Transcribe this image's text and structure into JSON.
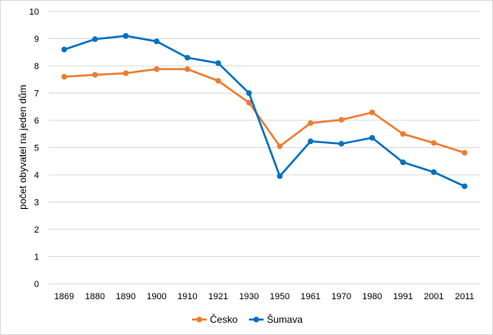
{
  "chart_data": {
    "type": "line",
    "title": "",
    "xlabel": "",
    "ylabel": "počet obyvatel na jeden dům",
    "categories": [
      "1869",
      "1880",
      "1890",
      "1900",
      "1910",
      "1921",
      "1930",
      "1950",
      "1961",
      "1970",
      "1980",
      "1991",
      "2001",
      "2011"
    ],
    "ylim": [
      0,
      10
    ],
    "yticks": [
      0,
      1,
      2,
      3,
      4,
      5,
      6,
      7,
      8,
      9,
      10
    ],
    "grid": true,
    "legend_position": "bottom",
    "series": [
      {
        "name": "Česko",
        "color": "#ED7D31",
        "values": [
          7.6,
          7.67,
          7.73,
          7.88,
          7.88,
          7.45,
          6.65,
          5.05,
          5.9,
          6.02,
          6.29,
          5.5,
          5.17,
          4.81
        ]
      },
      {
        "name": "Šumava",
        "color": "#0070C0",
        "values": [
          8.6,
          8.98,
          9.1,
          8.9,
          8.3,
          8.1,
          7.0,
          3.95,
          5.23,
          5.14,
          5.36,
          4.46,
          4.1,
          3.58
        ]
      }
    ]
  }
}
